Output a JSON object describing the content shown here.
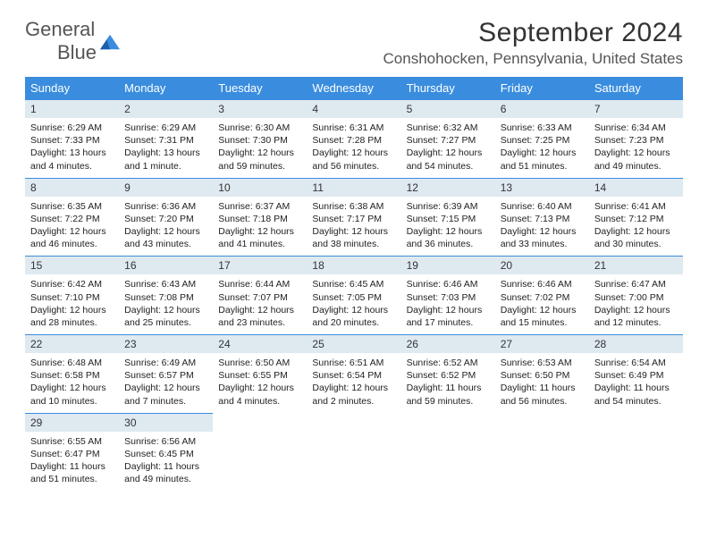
{
  "logo": {
    "word1": "General",
    "word2": "Blue"
  },
  "title": "September 2024",
  "location": "Conshohocken, Pennsylvania, United States",
  "colors": {
    "header_bg": "#3a8dde",
    "header_text": "#ffffff",
    "daybar_bg": "#dfe9f0",
    "border": "#3a8dde",
    "text": "#333333"
  },
  "fonts": {
    "title_size": 30,
    "location_size": 17,
    "weekday_size": 13,
    "daynum_size": 12,
    "body_size": 10.5
  },
  "weekdays": [
    "Sunday",
    "Monday",
    "Tuesday",
    "Wednesday",
    "Thursday",
    "Friday",
    "Saturday"
  ],
  "weeks": [
    [
      {
        "n": 1,
        "sr": "6:29 AM",
        "ss": "7:33 PM",
        "dl": "13 hours and 4 minutes."
      },
      {
        "n": 2,
        "sr": "6:29 AM",
        "ss": "7:31 PM",
        "dl": "13 hours and 1 minute."
      },
      {
        "n": 3,
        "sr": "6:30 AM",
        "ss": "7:30 PM",
        "dl": "12 hours and 59 minutes."
      },
      {
        "n": 4,
        "sr": "6:31 AM",
        "ss": "7:28 PM",
        "dl": "12 hours and 56 minutes."
      },
      {
        "n": 5,
        "sr": "6:32 AM",
        "ss": "7:27 PM",
        "dl": "12 hours and 54 minutes."
      },
      {
        "n": 6,
        "sr": "6:33 AM",
        "ss": "7:25 PM",
        "dl": "12 hours and 51 minutes."
      },
      {
        "n": 7,
        "sr": "6:34 AM",
        "ss": "7:23 PM",
        "dl": "12 hours and 49 minutes."
      }
    ],
    [
      {
        "n": 8,
        "sr": "6:35 AM",
        "ss": "7:22 PM",
        "dl": "12 hours and 46 minutes."
      },
      {
        "n": 9,
        "sr": "6:36 AM",
        "ss": "7:20 PM",
        "dl": "12 hours and 43 minutes."
      },
      {
        "n": 10,
        "sr": "6:37 AM",
        "ss": "7:18 PM",
        "dl": "12 hours and 41 minutes."
      },
      {
        "n": 11,
        "sr": "6:38 AM",
        "ss": "7:17 PM",
        "dl": "12 hours and 38 minutes."
      },
      {
        "n": 12,
        "sr": "6:39 AM",
        "ss": "7:15 PM",
        "dl": "12 hours and 36 minutes."
      },
      {
        "n": 13,
        "sr": "6:40 AM",
        "ss": "7:13 PM",
        "dl": "12 hours and 33 minutes."
      },
      {
        "n": 14,
        "sr": "6:41 AM",
        "ss": "7:12 PM",
        "dl": "12 hours and 30 minutes."
      }
    ],
    [
      {
        "n": 15,
        "sr": "6:42 AM",
        "ss": "7:10 PM",
        "dl": "12 hours and 28 minutes."
      },
      {
        "n": 16,
        "sr": "6:43 AM",
        "ss": "7:08 PM",
        "dl": "12 hours and 25 minutes."
      },
      {
        "n": 17,
        "sr": "6:44 AM",
        "ss": "7:07 PM",
        "dl": "12 hours and 23 minutes."
      },
      {
        "n": 18,
        "sr": "6:45 AM",
        "ss": "7:05 PM",
        "dl": "12 hours and 20 minutes."
      },
      {
        "n": 19,
        "sr": "6:46 AM",
        "ss": "7:03 PM",
        "dl": "12 hours and 17 minutes."
      },
      {
        "n": 20,
        "sr": "6:46 AM",
        "ss": "7:02 PM",
        "dl": "12 hours and 15 minutes."
      },
      {
        "n": 21,
        "sr": "6:47 AM",
        "ss": "7:00 PM",
        "dl": "12 hours and 12 minutes."
      }
    ],
    [
      {
        "n": 22,
        "sr": "6:48 AM",
        "ss": "6:58 PM",
        "dl": "12 hours and 10 minutes."
      },
      {
        "n": 23,
        "sr": "6:49 AM",
        "ss": "6:57 PM",
        "dl": "12 hours and 7 minutes."
      },
      {
        "n": 24,
        "sr": "6:50 AM",
        "ss": "6:55 PM",
        "dl": "12 hours and 4 minutes."
      },
      {
        "n": 25,
        "sr": "6:51 AM",
        "ss": "6:54 PM",
        "dl": "12 hours and 2 minutes."
      },
      {
        "n": 26,
        "sr": "6:52 AM",
        "ss": "6:52 PM",
        "dl": "11 hours and 59 minutes."
      },
      {
        "n": 27,
        "sr": "6:53 AM",
        "ss": "6:50 PM",
        "dl": "11 hours and 56 minutes."
      },
      {
        "n": 28,
        "sr": "6:54 AM",
        "ss": "6:49 PM",
        "dl": "11 hours and 54 minutes."
      }
    ],
    [
      {
        "n": 29,
        "sr": "6:55 AM",
        "ss": "6:47 PM",
        "dl": "11 hours and 51 minutes."
      },
      {
        "n": 30,
        "sr": "6:56 AM",
        "ss": "6:45 PM",
        "dl": "11 hours and 49 minutes."
      },
      null,
      null,
      null,
      null,
      null
    ]
  ],
  "labels": {
    "sunrise": "Sunrise:",
    "sunset": "Sunset:",
    "daylight": "Daylight:"
  }
}
